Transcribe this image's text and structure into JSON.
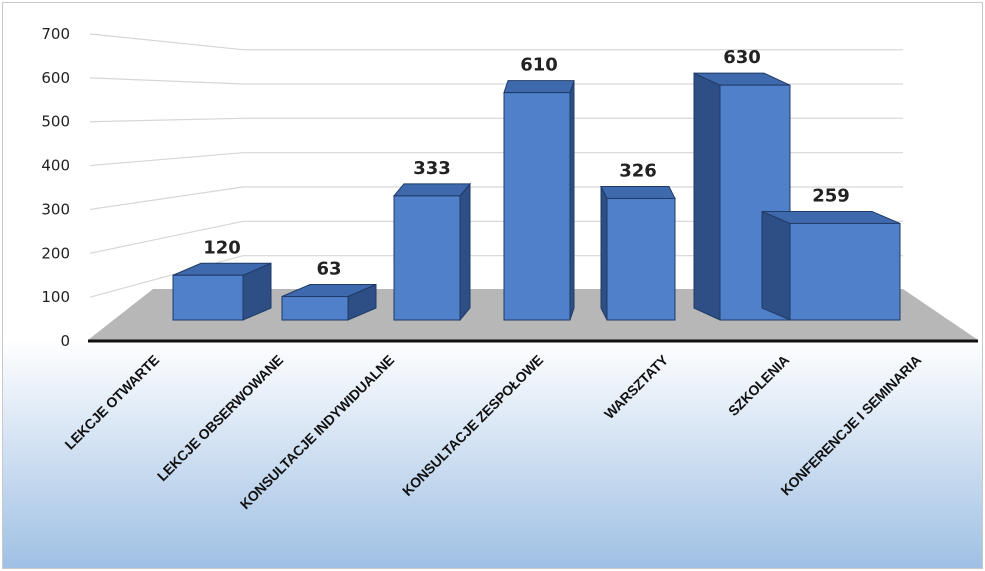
{
  "chart_data": {
    "type": "bar",
    "categories": [
      "LEKCJE OTWARTE",
      "LEKCJE OBSERWOWANE",
      "KONSULTACJE INDYWIDUALNE",
      "KONSULTACJE ZESPOŁOWE",
      "WARSZTATY",
      "SZKOLENIA",
      "KONFERENCJE I SEMINARIA"
    ],
    "values": [
      120,
      63,
      333,
      610,
      326,
      630,
      259
    ],
    "data_labels": [
      "120",
      "63",
      "333",
      "610",
      "326",
      "630",
      "259"
    ],
    "ylim": [
      0,
      700
    ],
    "yticks": [
      0,
      100,
      200,
      300,
      400,
      500,
      600,
      700
    ],
    "ytick_labels": [
      "0",
      "100",
      "200",
      "300",
      "400",
      "500",
      "600",
      "700"
    ],
    "title": "",
    "xlabel": "",
    "ylabel": "",
    "grid": true,
    "style": "3d-perspective",
    "colors": {
      "bar_front": "#4f80c9",
      "bar_side": "#2d4f86",
      "bar_top": "#3e69ad",
      "bar_edge": "#1f3b66",
      "floor": "#b7b7b7",
      "label_area_top": "#ffffff",
      "label_area_bottom": "#9fc0e4"
    }
  }
}
